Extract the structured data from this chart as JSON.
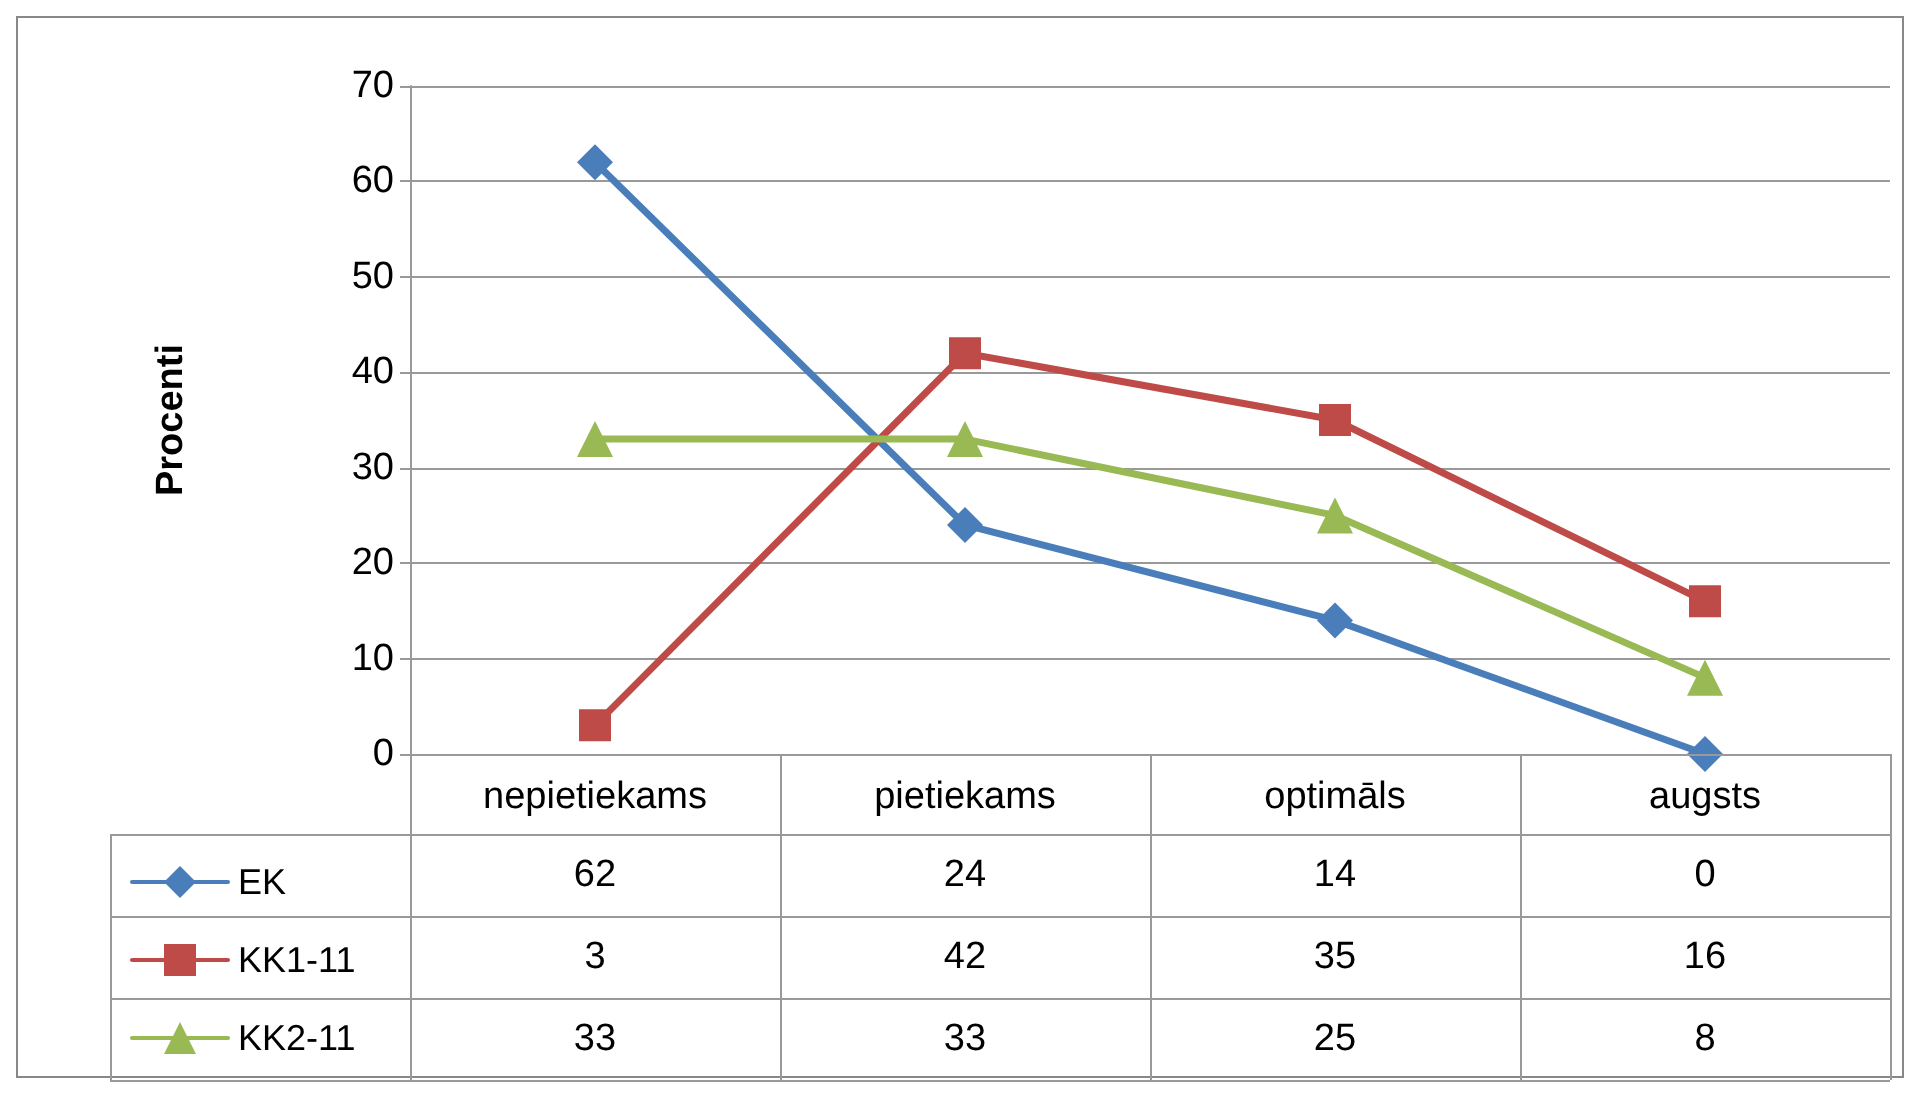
{
  "chart_data": {
    "type": "line",
    "ylabel": "Procenti",
    "categories": [
      "nepietiekams",
      "pietiekams",
      "optimāls",
      "augsts"
    ],
    "series": [
      {
        "name": "EK",
        "color": "#4a7ebb",
        "marker": "diamond",
        "values": [
          62,
          24,
          14,
          0
        ]
      },
      {
        "name": "KK1-11",
        "color": "#be4b48",
        "marker": "square",
        "values": [
          3,
          42,
          35,
          16
        ]
      },
      {
        "name": "KK2-11",
        "color": "#98b954",
        "marker": "triangle",
        "values": [
          33,
          33,
          25,
          8
        ]
      }
    ],
    "ylim": [
      0,
      70
    ],
    "yticks": [
      0,
      10,
      20,
      30,
      40,
      50,
      60,
      70
    ],
    "grid": "y",
    "legend": "bottom left",
    "data_labels": true
  }
}
